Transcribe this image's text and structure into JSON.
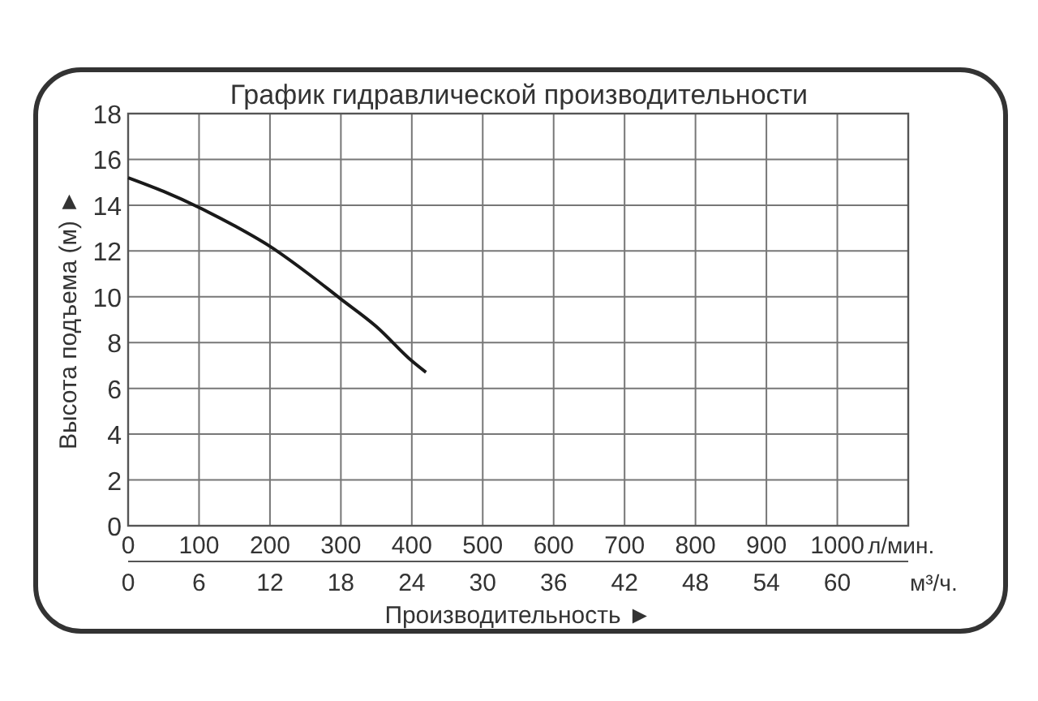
{
  "chart_data": {
    "type": "line",
    "title": "График гидравлической производительности",
    "xlabel": "Производительность ►",
    "ylabel": "Высота подъема (м) ►",
    "x2label": "м³/ч.",
    "annotations": [
      "л/мин."
    ],
    "x": [
      0,
      50,
      100,
      150,
      200,
      250,
      300,
      350,
      400,
      420
    ],
    "series": [
      {
        "color": "#1a1a1a",
        "values": [
          15.2,
          14.6,
          13.9,
          13.1,
          12.2,
          11.1,
          9.9,
          8.7,
          7.2,
          6.7
        ]
      }
    ],
    "xlim": [
      0,
      1100
    ],
    "xticks": [
      0,
      100,
      200,
      300,
      400,
      500,
      600,
      700,
      800,
      900,
      1000
    ],
    "x2lim": [
      0,
      66
    ],
    "x2ticks": [
      0,
      6,
      12,
      18,
      24,
      30,
      36,
      42,
      48,
      54,
      60
    ],
    "ylim": [
      0,
      18
    ],
    "yticks": [
      0,
      2,
      4,
      6,
      8,
      10,
      12,
      14,
      16,
      18
    ],
    "grid": true,
    "marker": "none",
    "line_style": "solid"
  }
}
